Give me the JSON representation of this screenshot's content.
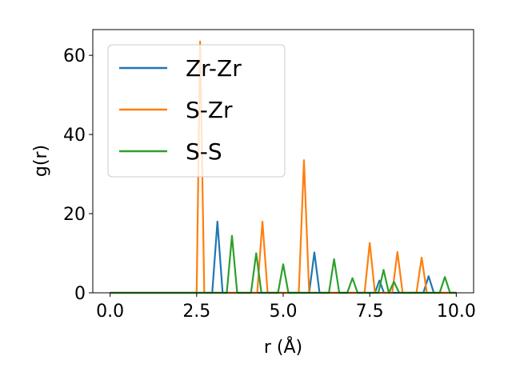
{
  "chart_data": {
    "type": "line",
    "title": "",
    "xlabel": "r (Å)",
    "ylabel": "g(r)",
    "xlim": [
      -0.5,
      10.5
    ],
    "ylim": [
      0,
      66.5
    ],
    "xticks": [
      0.0,
      2.5,
      5.0,
      7.5,
      10.0
    ],
    "xtick_labels": [
      "0.0",
      "2.5",
      "5.0",
      "7.5",
      "10.0"
    ],
    "yticks": [
      0,
      20,
      40,
      60
    ],
    "ytick_labels": [
      "0",
      "20",
      "40",
      "60"
    ],
    "grid": false,
    "legend_position": "upper-left",
    "series": [
      {
        "name": "Zr-Zr",
        "color": "#1f77b4",
        "x": [
          0,
          2.95,
          3.1,
          3.25,
          5.75,
          5.9,
          6.05,
          7.65,
          7.78,
          7.91,
          9.05,
          9.2,
          9.35,
          10.0
        ],
        "y": [
          0,
          0,
          18.0,
          0,
          0,
          10.2,
          0,
          0,
          3.1,
          0,
          0,
          4.2,
          0,
          0
        ]
      },
      {
        "name": "S-Zr",
        "color": "#ff7f0e",
        "x": [
          0,
          2.5,
          2.6,
          2.72,
          4.25,
          4.4,
          4.55,
          5.45,
          5.6,
          5.75,
          7.35,
          7.5,
          7.65,
          8.15,
          8.3,
          8.45,
          8.85,
          9.0,
          9.15,
          10.0
        ],
        "y": [
          0,
          0,
          63.5,
          0,
          0,
          18.0,
          0,
          0,
          33.5,
          0,
          0,
          12.6,
          0,
          0,
          10.3,
          0,
          0,
          8.9,
          0,
          0
        ]
      },
      {
        "name": "S-S",
        "color": "#2ca02c",
        "x": [
          0,
          3.37,
          3.52,
          3.67,
          4.07,
          4.22,
          4.37,
          4.85,
          5.0,
          5.15,
          6.32,
          6.47,
          6.62,
          6.85,
          7.0,
          7.15,
          7.75,
          7.9,
          8.05,
          8.05,
          8.2,
          8.35,
          9.52,
          9.67,
          9.82,
          10.0
        ],
        "y": [
          0,
          0,
          14.4,
          0,
          0,
          10.0,
          0,
          0,
          7.2,
          0,
          0,
          8.5,
          0,
          0,
          3.7,
          0,
          0,
          5.8,
          0,
          0,
          2.8,
          0,
          0,
          4.0,
          0,
          0
        ]
      }
    ]
  }
}
